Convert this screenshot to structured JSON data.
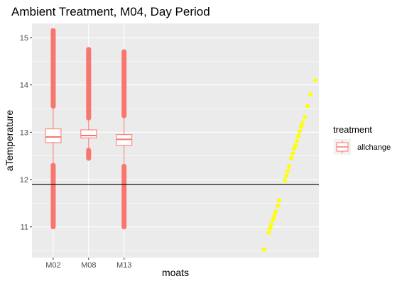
{
  "chart_data": {
    "type": "box+scatter",
    "title": "Ambient Treatment, M04, Day Period",
    "xlabel": "moats",
    "ylabel": "aTemperature",
    "categories": [
      "M02",
      "M08",
      "M13"
    ],
    "ylim": [
      10.35,
      15.3
    ],
    "y_ticks": [
      11,
      12,
      13,
      14,
      15
    ],
    "y_tick_labels": [
      "11",
      "12",
      "13",
      "14",
      "15"
    ],
    "hline": 11.9,
    "grid": true,
    "legend": {
      "title": "treatment",
      "placement": "right",
      "entries": [
        "allchange"
      ]
    },
    "colors": {
      "box": "#F8766D",
      "scatter": "#FFFF00",
      "panel": "#EBEBEB",
      "hline": "#000000"
    },
    "boxes": [
      {
        "category": "M02",
        "median": 12.9,
        "q1": 12.78,
        "q3": 13.07,
        "whisker_low": 12.35,
        "whisker_high": 13.5,
        "outliers_low": [
          11.0,
          12.3
        ],
        "outliers_high": [
          13.55,
          15.15
        ]
      },
      {
        "category": "M08",
        "median": 12.93,
        "q1": 12.88,
        "q3": 13.05,
        "whisker_low": 12.65,
        "whisker_high": 13.25,
        "outliers_low": [
          12.45,
          12.62
        ],
        "outliers_high": [
          13.3,
          14.75
        ]
      },
      {
        "category": "M13",
        "median": 12.85,
        "q1": 12.72,
        "q3": 12.95,
        "whisker_low": 12.3,
        "whisker_high": 13.35,
        "outliers_low": [
          11.0,
          12.28
        ],
        "outliers_high": [
          13.35,
          14.7
        ]
      }
    ],
    "scatter_points": [
      {
        "x": 6.95,
        "y": 10.52
      },
      {
        "x": 7.08,
        "y": 10.88
      },
      {
        "x": 7.12,
        "y": 10.97
      },
      {
        "x": 7.16,
        "y": 11.05
      },
      {
        "x": 7.2,
        "y": 11.15
      },
      {
        "x": 7.24,
        "y": 11.23
      },
      {
        "x": 7.28,
        "y": 11.32
      },
      {
        "x": 7.34,
        "y": 11.45
      },
      {
        "x": 7.38,
        "y": 11.56
      },
      {
        "x": 7.54,
        "y": 11.98
      },
      {
        "x": 7.58,
        "y": 12.08
      },
      {
        "x": 7.62,
        "y": 12.18
      },
      {
        "x": 7.66,
        "y": 12.28
      },
      {
        "x": 7.72,
        "y": 12.45
      },
      {
        "x": 7.76,
        "y": 12.55
      },
      {
        "x": 7.8,
        "y": 12.65
      },
      {
        "x": 7.84,
        "y": 12.72
      },
      {
        "x": 7.88,
        "y": 12.82
      },
      {
        "x": 7.92,
        "y": 12.92
      },
      {
        "x": 7.96,
        "y": 13.02
      },
      {
        "x": 8.0,
        "y": 13.12
      },
      {
        "x": 8.04,
        "y": 13.2
      },
      {
        "x": 8.1,
        "y": 13.32
      },
      {
        "x": 8.18,
        "y": 13.55
      },
      {
        "x": 8.26,
        "y": 13.8
      },
      {
        "x": 8.4,
        "y": 14.1
      }
    ]
  }
}
